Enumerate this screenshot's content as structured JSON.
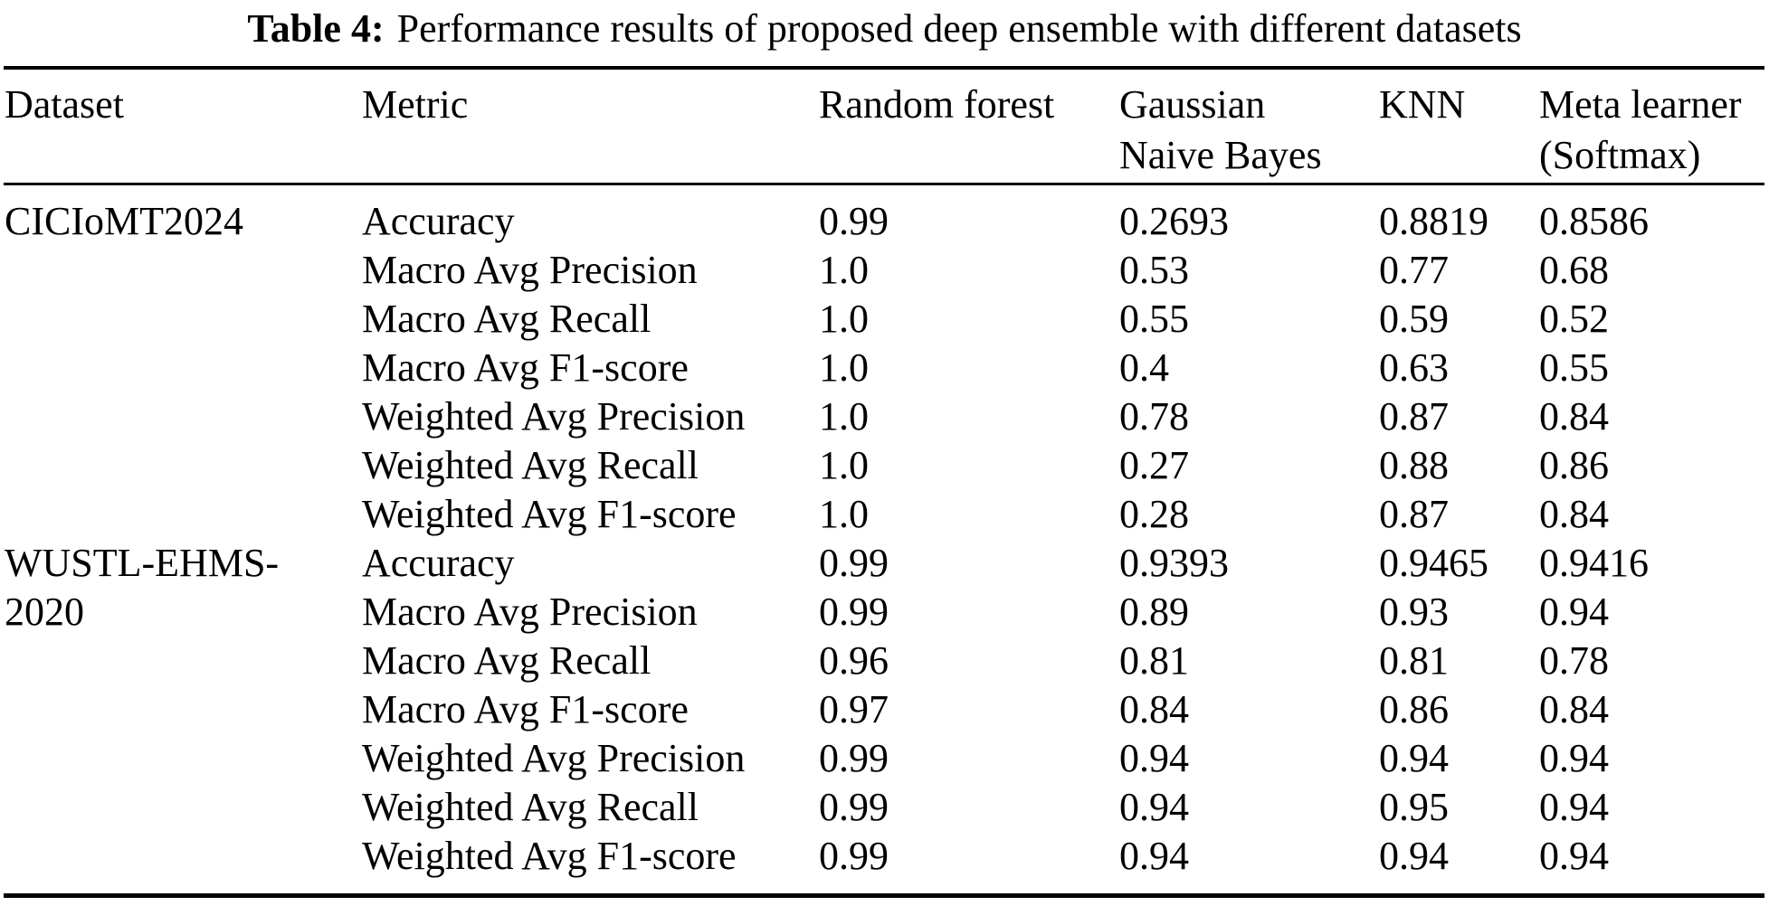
{
  "caption": {
    "label": "Table 4:",
    "text": "Performance results of proposed deep ensemble with different datasets"
  },
  "table": {
    "headers": [
      "Dataset",
      "Metric",
      "Random forest",
      "Gaussian\nNaive Bayes",
      "KNN",
      "Meta learner\n(Softmax)"
    ],
    "rows": [
      {
        "dataset": "CICIoMT2024",
        "metric": "Accuracy",
        "rf": "0.99",
        "gnb": "0.2693",
        "knn": "0.8819",
        "meta": "0.8586"
      },
      {
        "dataset": "",
        "metric": "Macro Avg Precision",
        "rf": "1.0",
        "gnb": "0.53",
        "knn": "0.77",
        "meta": "0.68"
      },
      {
        "dataset": "",
        "metric": "Macro Avg Recall",
        "rf": "1.0",
        "gnb": "0.55",
        "knn": "0.59",
        "meta": "0.52"
      },
      {
        "dataset": "",
        "metric": "Macro Avg F1-score",
        "rf": "1.0",
        "gnb": "0.4",
        "knn": "0.63",
        "meta": "0.55"
      },
      {
        "dataset": "",
        "metric": "Weighted Avg Precision",
        "rf": "1.0",
        "gnb": "0.78",
        "knn": "0.87",
        "meta": "0.84"
      },
      {
        "dataset": "",
        "metric": "Weighted Avg Recall",
        "rf": "1.0",
        "gnb": "0.27",
        "knn": "0.88",
        "meta": "0.86"
      },
      {
        "dataset": "",
        "metric": "Weighted Avg F1-score",
        "rf": "1.0",
        "gnb": "0.28",
        "knn": "0.87",
        "meta": "0.84"
      },
      {
        "dataset": "WUSTL-EHMS-",
        "metric": "Accuracy",
        "rf": "0.99",
        "gnb": "0.9393",
        "knn": "0.9465",
        "meta": "0.9416"
      },
      {
        "dataset": "2020",
        "metric": "Macro Avg Precision",
        "rf": "0.99",
        "gnb": "0.89",
        "knn": "0.93",
        "meta": "0.94"
      },
      {
        "dataset": "",
        "metric": "Macro Avg Recall",
        "rf": "0.96",
        "gnb": "0.81",
        "knn": "0.81",
        "meta": "0.78"
      },
      {
        "dataset": "",
        "metric": "Macro Avg F1-score",
        "rf": "0.97",
        "gnb": "0.84",
        "knn": "0.86",
        "meta": "0.84"
      },
      {
        "dataset": "",
        "metric": "Weighted Avg Precision",
        "rf": "0.99",
        "gnb": "0.94",
        "knn": "0.94",
        "meta": "0.94"
      },
      {
        "dataset": "",
        "metric": "Weighted Avg Recall",
        "rf": "0.99",
        "gnb": "0.94",
        "knn": "0.95",
        "meta": "0.94"
      },
      {
        "dataset": "",
        "metric": "Weighted Avg F1-score",
        "rf": "0.99",
        "gnb": "0.94",
        "knn": "0.94",
        "meta": "0.94"
      }
    ]
  },
  "colors": {
    "text": "#000000",
    "background": "#ffffff",
    "rule": "#000000"
  }
}
